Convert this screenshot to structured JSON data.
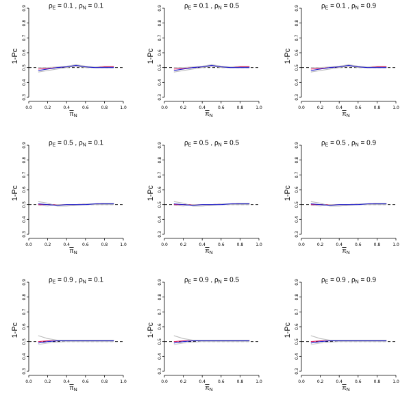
{
  "figure": {
    "ylabel": "1-Pc",
    "xlabel_main": "π",
    "xlabel_sub": "N"
  },
  "chart_data": [
    {
      "type": "line",
      "row": 0,
      "col": 0,
      "title": {
        "a": "ρ",
        "a_sub": "E",
        "a_val": "= 0.1 ,",
        "b": "ρ",
        "b_sub": "N",
        "b_val": "= 0.1"
      },
      "xlim": [
        0,
        1
      ],
      "ylim": [
        0.3,
        0.9
      ],
      "xticks": [
        "0.0",
        "0.2",
        "0.4",
        "0.6",
        "0.8",
        "1.0"
      ],
      "yticks": [
        "0.3",
        "0.4",
        "0.5",
        "0.6",
        "0.7",
        "0.8",
        "0.9"
      ],
      "reference_line": 0.5,
      "x": [
        0.1,
        0.2,
        0.3,
        0.4,
        0.5,
        0.6,
        0.7,
        0.8,
        0.9
      ],
      "series": [
        {
          "color": "#2222cc",
          "values": [
            0.48,
            0.49,
            0.5,
            0.505,
            0.515,
            0.505,
            0.5,
            0.5,
            0.5
          ]
        },
        {
          "color": "#dd2266",
          "values": [
            0.49,
            0.495,
            0.5,
            0.505,
            0.51,
            0.505,
            0.5,
            0.505,
            0.505
          ]
        },
        {
          "color": "#bbbbbb",
          "values": [
            0.47,
            0.48,
            0.49,
            0.5,
            0.51,
            0.5,
            0.5,
            0.5,
            0.5
          ]
        },
        {
          "color": "#cccccc",
          "values": [
            0.5,
            0.5,
            0.505,
            0.51,
            0.52,
            0.51,
            0.505,
            0.51,
            0.51
          ]
        }
      ]
    },
    {
      "type": "line",
      "row": 0,
      "col": 1,
      "title": {
        "a": "ρ",
        "a_sub": "E",
        "a_val": "= 0.1 ,",
        "b": "ρ",
        "b_sub": "N",
        "b_val": "= 0.5"
      },
      "xlim": [
        0,
        1
      ],
      "ylim": [
        0.3,
        0.9
      ],
      "xticks": [
        "0.0",
        "0.2",
        "0.4",
        "0.6",
        "0.8",
        "1.0"
      ],
      "yticks": [
        "0.3",
        "0.4",
        "0.5",
        "0.6",
        "0.7",
        "0.8",
        "0.9"
      ],
      "reference_line": 0.5,
      "x": [
        0.1,
        0.2,
        0.3,
        0.4,
        0.5,
        0.6,
        0.7,
        0.8,
        0.9
      ],
      "series": [
        {
          "color": "#2222cc",
          "values": [
            0.48,
            0.49,
            0.5,
            0.505,
            0.515,
            0.505,
            0.5,
            0.5,
            0.5
          ]
        },
        {
          "color": "#dd2266",
          "values": [
            0.49,
            0.495,
            0.5,
            0.505,
            0.51,
            0.505,
            0.5,
            0.505,
            0.505
          ]
        },
        {
          "color": "#bbbbbb",
          "values": [
            0.47,
            0.48,
            0.49,
            0.5,
            0.51,
            0.5,
            0.5,
            0.5,
            0.5
          ]
        },
        {
          "color": "#cccccc",
          "values": [
            0.5,
            0.5,
            0.505,
            0.51,
            0.52,
            0.51,
            0.505,
            0.51,
            0.51
          ]
        }
      ]
    },
    {
      "type": "line",
      "row": 0,
      "col": 2,
      "title": {
        "a": "ρ",
        "a_sub": "E",
        "a_val": "= 0.1 ,",
        "b": "ρ",
        "b_sub": "N",
        "b_val": "= 0.9"
      },
      "xlim": [
        0,
        1
      ],
      "ylim": [
        0.3,
        0.9
      ],
      "xticks": [
        "0.0",
        "0.2",
        "0.4",
        "0.6",
        "0.8",
        "1.0"
      ],
      "yticks": [
        "0.3",
        "0.4",
        "0.5",
        "0.6",
        "0.7",
        "0.8",
        "0.9"
      ],
      "reference_line": 0.5,
      "x": [
        0.1,
        0.2,
        0.3,
        0.4,
        0.5,
        0.6,
        0.7,
        0.8,
        0.9
      ],
      "series": [
        {
          "color": "#2222cc",
          "values": [
            0.48,
            0.49,
            0.5,
            0.505,
            0.515,
            0.505,
            0.5,
            0.5,
            0.5
          ]
        },
        {
          "color": "#dd2266",
          "values": [
            0.49,
            0.495,
            0.5,
            0.505,
            0.51,
            0.505,
            0.5,
            0.505,
            0.505
          ]
        },
        {
          "color": "#bbbbbb",
          "values": [
            0.47,
            0.48,
            0.49,
            0.5,
            0.51,
            0.5,
            0.5,
            0.5,
            0.5
          ]
        },
        {
          "color": "#cccccc",
          "values": [
            0.5,
            0.5,
            0.505,
            0.51,
            0.52,
            0.51,
            0.505,
            0.51,
            0.51
          ]
        }
      ]
    },
    {
      "type": "line",
      "row": 1,
      "col": 0,
      "title": {
        "a": "ρ",
        "a_sub": "E",
        "a_val": "= 0.5 ,",
        "b": "ρ",
        "b_sub": "N",
        "b_val": "= 0.1"
      },
      "xlim": [
        0,
        1
      ],
      "ylim": [
        0.3,
        0.9
      ],
      "xticks": [
        "0.0",
        "0.2",
        "0.4",
        "0.6",
        "0.8",
        "1.0"
      ],
      "yticks": [
        "0.3",
        "0.4",
        "0.5",
        "0.6",
        "0.7",
        "0.8",
        "0.9"
      ],
      "reference_line": 0.5,
      "x": [
        0.1,
        0.2,
        0.3,
        0.4,
        0.5,
        0.6,
        0.7,
        0.8,
        0.9
      ],
      "series": [
        {
          "color": "#2222cc",
          "values": [
            0.505,
            0.5,
            0.495,
            0.5,
            0.5,
            0.5,
            0.505,
            0.505,
            0.505
          ]
        },
        {
          "color": "#dd2266",
          "values": [
            0.5,
            0.5,
            0.5,
            0.5,
            0.5,
            0.505,
            0.505,
            0.51,
            0.51
          ]
        },
        {
          "color": "#bbbbbb",
          "values": [
            0.52,
            0.51,
            0.49,
            0.49,
            0.495,
            0.5,
            0.5,
            0.5,
            0.5
          ]
        },
        {
          "color": "#cccccc",
          "values": [
            0.495,
            0.49,
            0.5,
            0.5,
            0.5,
            0.505,
            0.505,
            0.51,
            0.51
          ]
        }
      ]
    },
    {
      "type": "line",
      "row": 1,
      "col": 1,
      "title": {
        "a": "ρ",
        "a_sub": "E",
        "a_val": "= 0.5 ,",
        "b": "ρ",
        "b_sub": "N",
        "b_val": "= 0.5"
      },
      "xlim": [
        0,
        1
      ],
      "ylim": [
        0.3,
        0.9
      ],
      "xticks": [
        "0.0",
        "0.2",
        "0.4",
        "0.6",
        "0.8",
        "1.0"
      ],
      "yticks": [
        "0.3",
        "0.4",
        "0.5",
        "0.6",
        "0.7",
        "0.8",
        "0.9"
      ],
      "reference_line": 0.5,
      "x": [
        0.1,
        0.2,
        0.3,
        0.4,
        0.5,
        0.6,
        0.7,
        0.8,
        0.9
      ],
      "series": [
        {
          "color": "#2222cc",
          "values": [
            0.505,
            0.5,
            0.495,
            0.5,
            0.5,
            0.5,
            0.505,
            0.505,
            0.505
          ]
        },
        {
          "color": "#dd2266",
          "values": [
            0.5,
            0.5,
            0.5,
            0.5,
            0.5,
            0.505,
            0.505,
            0.51,
            0.51
          ]
        },
        {
          "color": "#bbbbbb",
          "values": [
            0.52,
            0.51,
            0.49,
            0.49,
            0.495,
            0.5,
            0.5,
            0.5,
            0.5
          ]
        },
        {
          "color": "#cccccc",
          "values": [
            0.495,
            0.49,
            0.5,
            0.5,
            0.5,
            0.505,
            0.505,
            0.51,
            0.51
          ]
        }
      ]
    },
    {
      "type": "line",
      "row": 1,
      "col": 2,
      "title": {
        "a": "ρ",
        "a_sub": "E",
        "a_val": "= 0.5 ,",
        "b": "ρ",
        "b_sub": "N",
        "b_val": "= 0.9"
      },
      "xlim": [
        0,
        1
      ],
      "ylim": [
        0.3,
        0.9
      ],
      "xticks": [
        "0.0",
        "0.2",
        "0.4",
        "0.6",
        "0.8",
        "1.0"
      ],
      "yticks": [
        "0.3",
        "0.4",
        "0.5",
        "0.6",
        "0.7",
        "0.8",
        "0.9"
      ],
      "reference_line": 0.5,
      "x": [
        0.1,
        0.2,
        0.3,
        0.4,
        0.5,
        0.6,
        0.7,
        0.8,
        0.9
      ],
      "series": [
        {
          "color": "#2222cc",
          "values": [
            0.505,
            0.5,
            0.495,
            0.5,
            0.5,
            0.5,
            0.505,
            0.505,
            0.505
          ]
        },
        {
          "color": "#dd2266",
          "values": [
            0.5,
            0.5,
            0.5,
            0.5,
            0.5,
            0.505,
            0.505,
            0.51,
            0.51
          ]
        },
        {
          "color": "#bbbbbb",
          "values": [
            0.52,
            0.51,
            0.49,
            0.49,
            0.495,
            0.5,
            0.5,
            0.5,
            0.5
          ]
        },
        {
          "color": "#cccccc",
          "values": [
            0.495,
            0.49,
            0.5,
            0.5,
            0.5,
            0.505,
            0.505,
            0.51,
            0.51
          ]
        }
      ]
    },
    {
      "type": "line",
      "row": 2,
      "col": 0,
      "title": {
        "a": "ρ",
        "a_sub": "E",
        "a_val": "= 0.9 ,",
        "b": "ρ",
        "b_sub": "N",
        "b_val": "= 0.1"
      },
      "xlim": [
        0,
        1
      ],
      "ylim": [
        0.3,
        0.9
      ],
      "xticks": [
        "0.0",
        "0.2",
        "0.4",
        "0.6",
        "0.8",
        "1.0"
      ],
      "yticks": [
        "0.3",
        "0.4",
        "0.5",
        "0.6",
        "0.7",
        "0.8",
        "0.9"
      ],
      "reference_line": 0.5,
      "x": [
        0.1,
        0.2,
        0.3,
        0.4,
        0.5,
        0.6,
        0.7,
        0.8,
        0.9
      ],
      "series": [
        {
          "color": "#2222cc",
          "values": [
            0.49,
            0.5,
            0.505,
            0.505,
            0.505,
            0.505,
            0.505,
            0.505,
            0.505
          ]
        },
        {
          "color": "#dd2266",
          "values": [
            0.5,
            0.505,
            0.505,
            0.51,
            0.51,
            0.51,
            0.51,
            0.51,
            0.51
          ]
        },
        {
          "color": "#bbbbbb",
          "values": [
            0.54,
            0.52,
            0.51,
            0.51,
            0.51,
            0.51,
            0.51,
            0.51,
            0.51
          ]
        },
        {
          "color": "#cccccc",
          "values": [
            0.48,
            0.49,
            0.495,
            0.5,
            0.5,
            0.5,
            0.5,
            0.5,
            0.5
          ]
        }
      ]
    },
    {
      "type": "line",
      "row": 2,
      "col": 1,
      "title": {
        "a": "ρ",
        "a_sub": "E",
        "a_val": "= 0.9 ,",
        "b": "ρ",
        "b_sub": "N",
        "b_val": "= 0.5"
      },
      "xlim": [
        0,
        1
      ],
      "ylim": [
        0.3,
        0.9
      ],
      "xticks": [
        "0.0",
        "0.2",
        "0.4",
        "0.6",
        "0.8",
        "1.0"
      ],
      "yticks": [
        "0.3",
        "0.4",
        "0.5",
        "0.6",
        "0.7",
        "0.8",
        "0.9"
      ],
      "reference_line": 0.5,
      "x": [
        0.1,
        0.2,
        0.3,
        0.4,
        0.5,
        0.6,
        0.7,
        0.8,
        0.9
      ],
      "series": [
        {
          "color": "#2222cc",
          "values": [
            0.49,
            0.5,
            0.505,
            0.505,
            0.505,
            0.505,
            0.505,
            0.505,
            0.505
          ]
        },
        {
          "color": "#dd2266",
          "values": [
            0.5,
            0.505,
            0.505,
            0.51,
            0.51,
            0.51,
            0.51,
            0.51,
            0.51
          ]
        },
        {
          "color": "#bbbbbb",
          "values": [
            0.54,
            0.52,
            0.51,
            0.51,
            0.51,
            0.51,
            0.51,
            0.51,
            0.51
          ]
        },
        {
          "color": "#cccccc",
          "values": [
            0.48,
            0.49,
            0.495,
            0.5,
            0.5,
            0.5,
            0.5,
            0.5,
            0.5
          ]
        }
      ]
    },
    {
      "type": "line",
      "row": 2,
      "col": 2,
      "title": {
        "a": "ρ",
        "a_sub": "E",
        "a_val": "= 0.9 ,",
        "b": "ρ",
        "b_sub": "N",
        "b_val": "= 0.9"
      },
      "xlim": [
        0,
        1
      ],
      "ylim": [
        0.3,
        0.9
      ],
      "xticks": [
        "0.0",
        "0.2",
        "0.4",
        "0.6",
        "0.8",
        "1.0"
      ],
      "yticks": [
        "0.3",
        "0.4",
        "0.5",
        "0.6",
        "0.7",
        "0.8",
        "0.9"
      ],
      "reference_line": 0.5,
      "x": [
        0.1,
        0.2,
        0.3,
        0.4,
        0.5,
        0.6,
        0.7,
        0.8,
        0.9
      ],
      "series": [
        {
          "color": "#2222cc",
          "values": [
            0.49,
            0.5,
            0.505,
            0.505,
            0.505,
            0.505,
            0.505,
            0.505,
            0.505
          ]
        },
        {
          "color": "#dd2266",
          "values": [
            0.5,
            0.505,
            0.505,
            0.51,
            0.51,
            0.51,
            0.51,
            0.51,
            0.51
          ]
        },
        {
          "color": "#bbbbbb",
          "values": [
            0.54,
            0.52,
            0.51,
            0.51,
            0.51,
            0.51,
            0.51,
            0.51,
            0.51
          ]
        },
        {
          "color": "#cccccc",
          "values": [
            0.48,
            0.49,
            0.495,
            0.5,
            0.5,
            0.5,
            0.5,
            0.5,
            0.5
          ]
        }
      ]
    }
  ]
}
